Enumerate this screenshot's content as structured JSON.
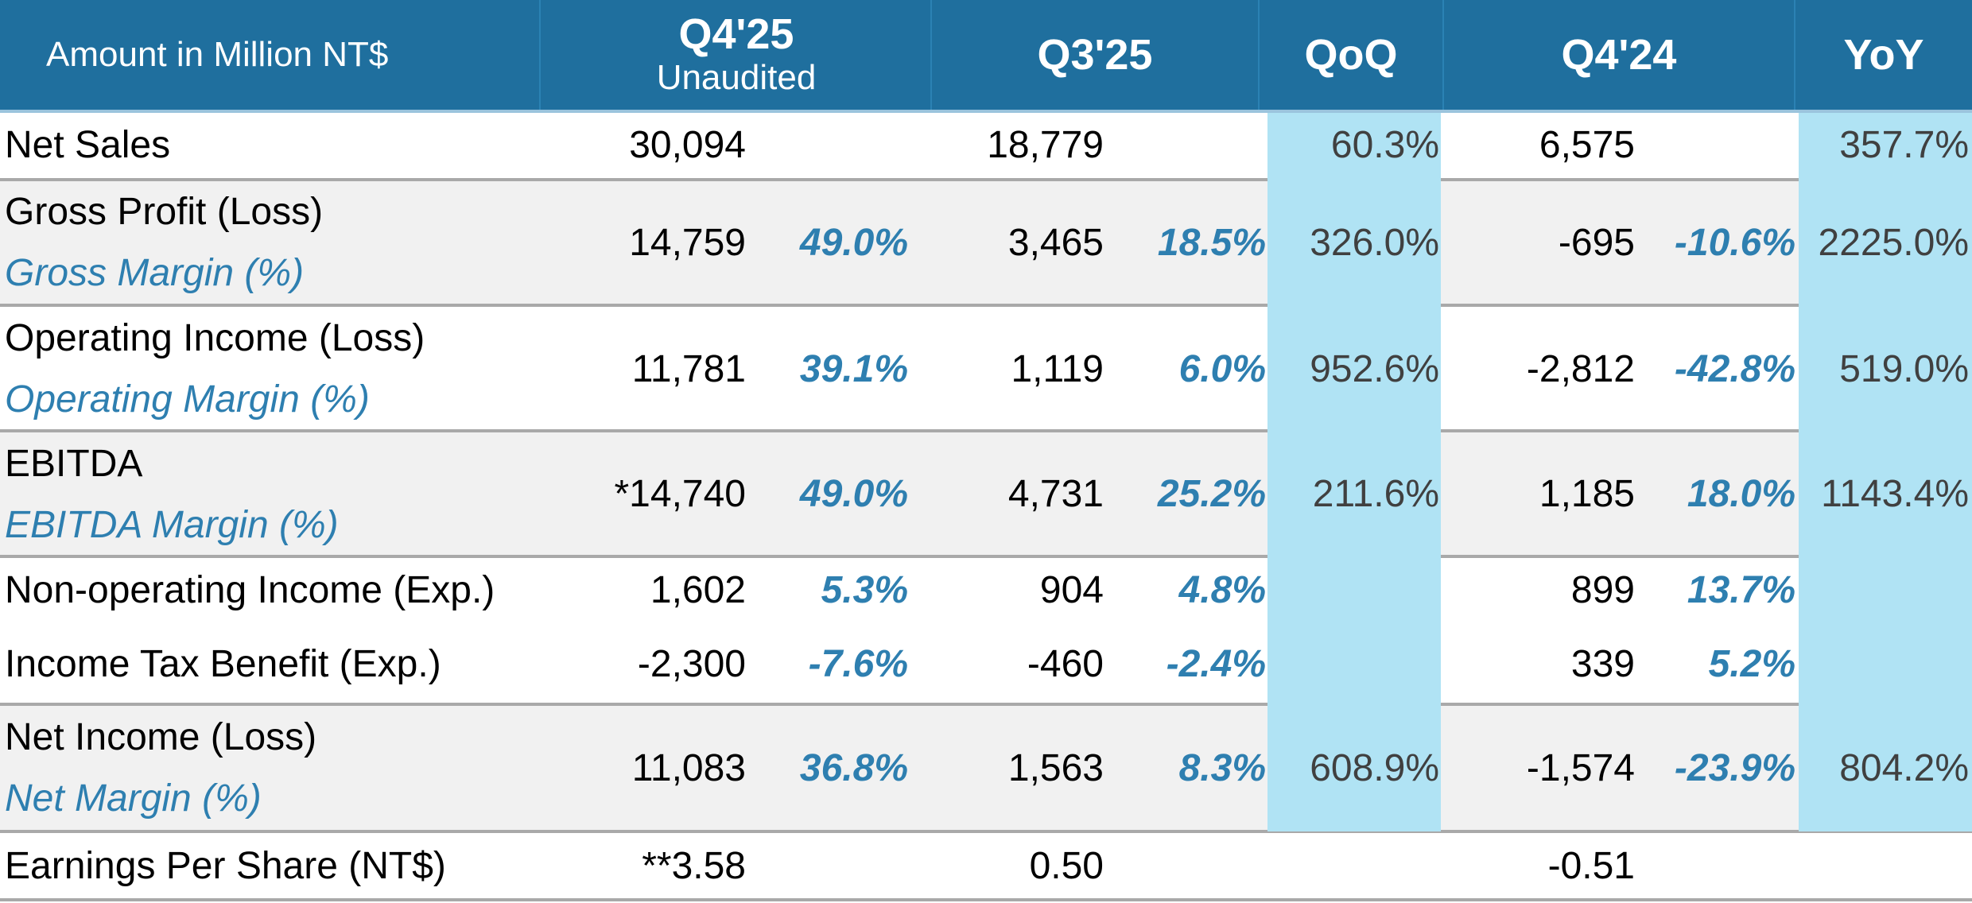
{
  "header": {
    "amount_label": "Amount in Million NT$",
    "q4_25": "Q4'25",
    "q4_25_sub": "Unaudited",
    "q3_25": "Q3'25",
    "qoq": "QoQ",
    "q4_24": "Q4'24",
    "yoy": "YoY"
  },
  "rows": {
    "net_sales": {
      "label": "Net Sales",
      "q4_25": "30,094",
      "q3_25": "18,779",
      "qoq": "60.3%",
      "q4_24": "6,575",
      "yoy": "357.7%"
    },
    "gross_profit": {
      "label": "Gross Profit (Loss)",
      "sub_label": "Gross Margin (%)",
      "q4_25": "14,759",
      "q4_25_pct": "49.0%",
      "q3_25": "3,465",
      "q3_25_pct": "18.5%",
      "qoq": "326.0%",
      "q4_24": "-695",
      "q4_24_pct": "-10.6%",
      "yoy": "2225.0%"
    },
    "operating_income": {
      "label": "Operating Income (Loss)",
      "sub_label": "Operating Margin (%)",
      "q4_25": "11,781",
      "q4_25_pct": "39.1%",
      "q3_25": "1,119",
      "q3_25_pct": "6.0%",
      "qoq": "952.6%",
      "q4_24": "-2,812",
      "q4_24_pct": "-42.8%",
      "yoy": "519.0%"
    },
    "ebitda": {
      "label": "EBITDA",
      "sub_label": "EBITDA Margin (%)",
      "q4_25": "*14,740",
      "q4_25_pct": "49.0%",
      "q3_25": "4,731",
      "q3_25_pct": "25.2%",
      "qoq": "211.6%",
      "q4_24": "1,185",
      "q4_24_pct": "18.0%",
      "yoy": "1143.4%"
    },
    "non_operating": {
      "label": "Non-operating Income (Exp.)",
      "q4_25": "1,602",
      "q4_25_pct": "5.3%",
      "q3_25": "904",
      "q3_25_pct": "4.8%",
      "q4_24": "899",
      "q4_24_pct": "13.7%"
    },
    "income_tax": {
      "label": "Income Tax Benefit (Exp.)",
      "q4_25": "-2,300",
      "q4_25_pct": "-7.6%",
      "q3_25": "-460",
      "q3_25_pct": "-2.4%",
      "q4_24": "339",
      "q4_24_pct": "5.2%"
    },
    "net_income": {
      "label": "Net Income (Loss)",
      "sub_label": "Net Margin (%)",
      "q4_25": "11,083",
      "q4_25_pct": "36.8%",
      "q3_25": "1,563",
      "q3_25_pct": "8.3%",
      "qoq": "608.9%",
      "q4_24": "-1,574",
      "q4_24_pct": "-23.9%",
      "yoy": "804.2%"
    },
    "eps": {
      "label": "Earnings Per Share (NT$)",
      "q4_25": "**3.58",
      "q3_25": "0.50",
      "q4_24": "-0.51"
    }
  },
  "colors": {
    "header_bg": "#1f6f9e",
    "highlight_bg": "#b0e3f4",
    "margin_text": "#2e7fb0",
    "row_shade": "#f1f1f1"
  }
}
